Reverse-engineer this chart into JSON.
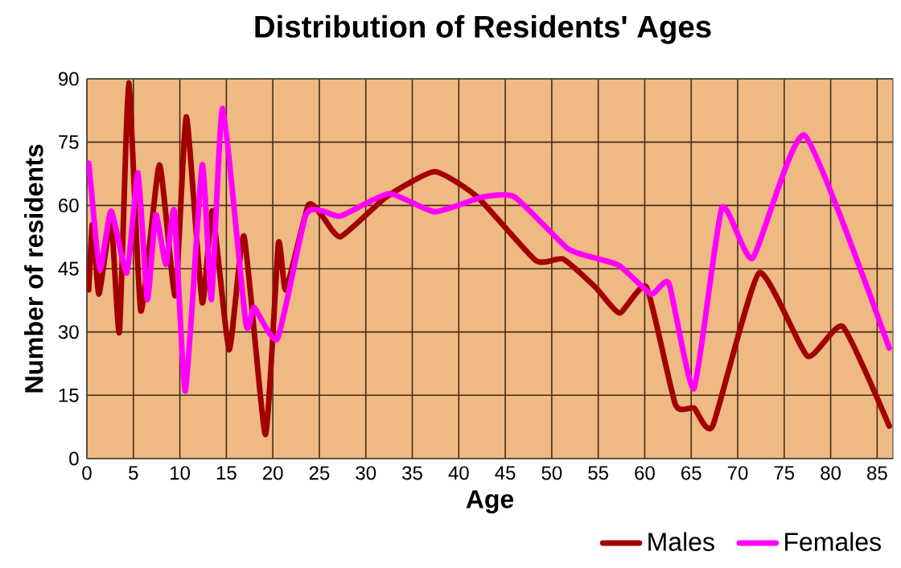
{
  "chart_data": {
    "type": "line",
    "title": "Distribution of Residents' Ages",
    "xlabel": "Age",
    "ylabel": "Number of residents",
    "xlim": [
      0,
      86.7
    ],
    "ylim": [
      0,
      90
    ],
    "xticks": [
      0,
      5,
      10,
      15,
      20,
      25,
      30,
      35,
      40,
      45,
      50,
      55,
      60,
      65,
      70,
      75,
      80,
      85
    ],
    "yticks": [
      0,
      15,
      30,
      45,
      60,
      75,
      90
    ],
    "grid": true,
    "legend": "bottom right",
    "marker": "none",
    "line_style": "solid",
    "series": [
      {
        "name": "Males",
        "color": "#a30000",
        "x": [
          0.2,
          0.6,
          1.3,
          2.6,
          3.5,
          4.5,
          5.8,
          7.8,
          9.5,
          10.7,
          12.4,
          13.5,
          15.3,
          16.9,
          19.2,
          20.6,
          21.4,
          23.8,
          25.3,
          27.3,
          32.2,
          37.4,
          42,
          48.3,
          51.2,
          54.7,
          57.3,
          60.2,
          63.3,
          65.3,
          67.3,
          72.3,
          77.5,
          81.3,
          86.3
        ],
        "values": [
          40,
          55.5,
          39,
          56.5,
          30,
          89,
          35,
          69.6,
          38.6,
          81,
          37,
          58.7,
          25.8,
          52.7,
          5.7,
          51,
          40,
          60,
          57.5,
          52.6,
          62,
          68,
          62,
          46.9,
          47.3,
          40.6,
          34.5,
          40.6,
          12.8,
          12,
          7.7,
          44,
          24.3,
          31.3,
          7.7
        ]
      },
      {
        "name": "Females",
        "color": "#ff00ff",
        "x": [
          0.2,
          0.5,
          1.4,
          2.6,
          4.3,
          5.5,
          6.5,
          7.4,
          8.5,
          9.4,
          10.6,
          12.4,
          13.4,
          14.6,
          17.1,
          18,
          20.5,
          23.5,
          25.3,
          27.3,
          32.5,
          37.4,
          42.6,
          46,
          51.7,
          54.7,
          57.3,
          60.7,
          62.6,
          65.3,
          68.3,
          71.6,
          77.2,
          86.3
        ],
        "values": [
          70,
          63,
          44.7,
          58.7,
          44,
          67.7,
          37.7,
          57.8,
          46,
          58.7,
          16,
          69.6,
          37.7,
          83,
          32,
          35.8,
          28.4,
          57.5,
          58.7,
          57.5,
          62.8,
          58.5,
          62,
          62,
          49.8,
          47.5,
          45.7,
          39,
          41.5,
          16.6,
          59.4,
          47.5,
          76.6,
          26.2
        ]
      }
    ]
  }
}
